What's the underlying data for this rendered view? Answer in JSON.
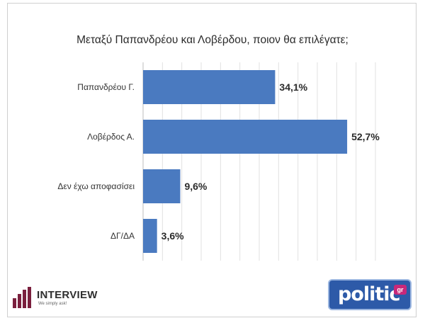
{
  "chart_data": {
    "type": "bar",
    "orientation": "horizontal",
    "title": "Μεταξύ Παπανδρέου και Λοβέρδου, ποιον θα επιλέγατε;",
    "categories": [
      "Παπανδρέου Γ.",
      "Λοβέρδος Α.",
      "Δεν έχω αποφασίσει",
      "ΔΓ/ΔΑ"
    ],
    "values": [
      34.1,
      52.7,
      9.6,
      3.6
    ],
    "value_labels": [
      "34,1%",
      "52,7%",
      "9,6%",
      "3,6%"
    ],
    "xlim": [
      0,
      60
    ],
    "grid": true,
    "bar_color": "#4a7ac0"
  },
  "logos": {
    "interview": {
      "name": "INTERVIEW",
      "tagline": "We simply ask!"
    },
    "politic": {
      "name": "politic",
      "suffix": "gr"
    }
  }
}
